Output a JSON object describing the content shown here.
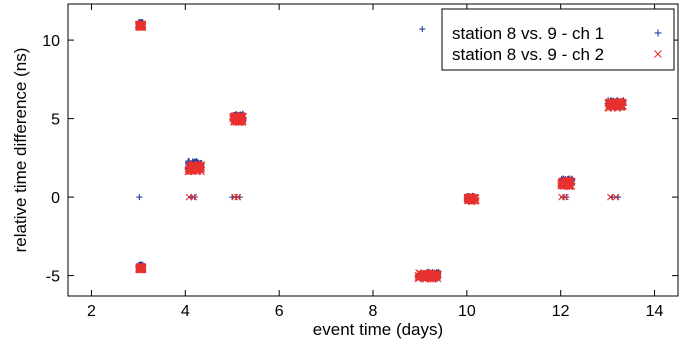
{
  "chart_data": {
    "type": "scatter",
    "title": "",
    "xlabel": "event time (days)",
    "ylabel": "relative time difference (ns)",
    "xlim": [
      1.5,
      14.5
    ],
    "ylim": [
      -6.3,
      12.3
    ],
    "xticks": [
      2,
      4,
      6,
      8,
      10,
      12,
      14
    ],
    "yticks": [
      -5,
      0,
      5,
      10
    ],
    "xtick_labels": [
      "2",
      "4",
      "6",
      "8",
      "10",
      "12",
      "14"
    ],
    "ytick_labels": [
      "-5",
      "0",
      "5",
      "10"
    ],
    "legend_position": "top-right",
    "series": [
      {
        "name": "station 8 vs. 9 - ch 1",
        "marker": "plus",
        "color": "#1f3f9e",
        "clusters": [
          {
            "x": [
              3.0,
              3.1
            ],
            "y": [
              10.9,
              11.15
            ]
          },
          {
            "x": [
              3.0,
              3.1
            ],
            "y": [
              -4.6,
              -4.3
            ]
          },
          {
            "x": [
              4.05,
              4.35
            ],
            "y": [
              1.7,
              2.3
            ]
          },
          {
            "x": [
              5.0,
              5.25
            ],
            "y": [
              4.8,
              5.3
            ]
          },
          {
            "x": [
              8.95,
              9.4
            ],
            "y": [
              -5.2,
              -4.75
            ]
          },
          {
            "x": [
              10.0,
              10.2
            ],
            "y": [
              -0.25,
              0.1
            ]
          },
          {
            "x": [
              12.0,
              12.25
            ],
            "y": [
              0.7,
              1.2
            ]
          },
          {
            "x": [
              13.0,
              13.35
            ],
            "y": [
              5.7,
              6.2
            ]
          }
        ],
        "points": [
          [
            3.02,
            0
          ],
          [
            4.12,
            0
          ],
          [
            4.2,
            0
          ],
          [
            5.0,
            0
          ],
          [
            5.08,
            0
          ],
          [
            5.16,
            0
          ],
          [
            12.05,
            0
          ],
          [
            12.12,
            0
          ],
          [
            13.1,
            0
          ],
          [
            13.22,
            0
          ],
          [
            9.05,
            10.7
          ]
        ]
      },
      {
        "name": "station 8 vs. 9 - ch 2",
        "marker": "x",
        "color": "#e8312f",
        "clusters": [
          {
            "x": [
              3.0,
              3.1
            ],
            "y": [
              10.8,
              11.05
            ]
          },
          {
            "x": [
              3.0,
              3.1
            ],
            "y": [
              -4.65,
              -4.4
            ]
          },
          {
            "x": [
              4.05,
              4.35
            ],
            "y": [
              1.6,
              2.15
            ]
          },
          {
            "x": [
              5.0,
              5.25
            ],
            "y": [
              4.75,
              5.2
            ]
          },
          {
            "x": [
              8.95,
              9.4
            ],
            "y": [
              -5.25,
              -4.8
            ]
          },
          {
            "x": [
              10.0,
              10.2
            ],
            "y": [
              -0.3,
              0.05
            ]
          },
          {
            "x": [
              12.0,
              12.25
            ],
            "y": [
              0.65,
              1.1
            ]
          },
          {
            "x": [
              13.0,
              13.35
            ],
            "y": [
              5.65,
              6.1
            ]
          }
        ],
        "points": [
          [
            4.08,
            0
          ],
          [
            4.18,
            0
          ],
          [
            5.05,
            0
          ],
          [
            5.12,
            0
          ],
          [
            12.02,
            0
          ],
          [
            12.1,
            0
          ],
          [
            13.06,
            0
          ],
          [
            13.18,
            0
          ]
        ]
      }
    ]
  }
}
